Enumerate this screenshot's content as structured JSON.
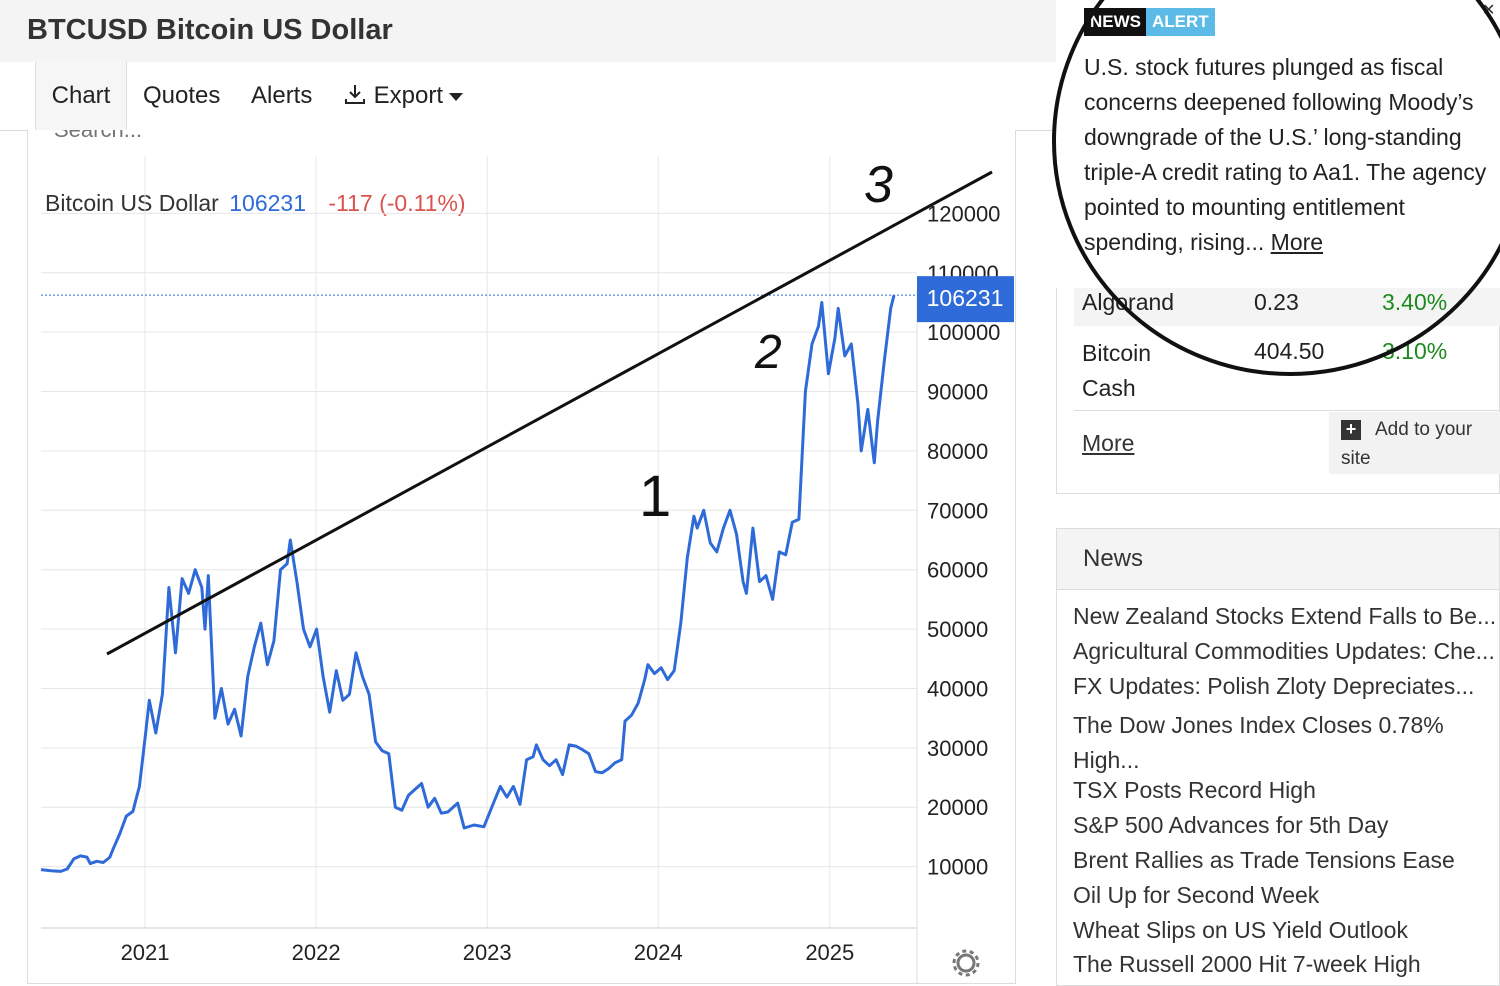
{
  "header": {
    "title": "BTCUSD Bitcoin US Dollar"
  },
  "tabs": [
    {
      "label": "Chart"
    },
    {
      "label": "Quotes"
    },
    {
      "label": "Alerts"
    },
    {
      "label": "Export"
    }
  ],
  "search": {
    "placeholder": "Search..."
  },
  "legend": {
    "name": "Bitcoin US Dollar",
    "price": "106231",
    "change": "-117 (-0.11%)"
  },
  "price_tag": "106231",
  "annotations": {
    "wave1": "1",
    "wave2": "2",
    "wave3": "3"
  },
  "market": {
    "rows": [
      {
        "name": "Algorand",
        "value": "0.23",
        "change": "3.40%"
      },
      {
        "name": "Bitcoin Cash",
        "value": "404.50",
        "change": "3.10%"
      }
    ],
    "more": "More",
    "add_site": "Add to your site"
  },
  "news": {
    "title": "News",
    "items": [
      "New Zealand Stocks Extend Falls to Be...",
      "Agricultural Commodities Updates: Che...",
      "FX Updates: Polish Zloty Depreciates...",
      "The Dow Jones Index Closes 0.78% High...",
      "TSX Posts Record High",
      "S&P 500 Advances for 5th Day",
      "Brent Rallies as Trade Tensions Ease",
      "Oil Up for Second Week",
      "Wheat Slips on US Yield Outlook",
      "The Russell 2000 Hit 7-week High"
    ]
  },
  "alert": {
    "badge_news": "NEWS",
    "badge_alert": "ALERT",
    "text": "U.S. stock futures plunged as fiscal concerns deepened following Moody’s downgrade of the U.S.’ long-standing triple-A credit rating to Aa1. The agency pointed to mounting entitlement spending, rising...",
    "more": "More"
  },
  "colors": {
    "line": "#2f6bd8",
    "tag_bg": "#2f6bd8",
    "negative": "#d9534f",
    "positive": "#1e8a1e"
  },
  "chart_data": {
    "type": "line",
    "title": "",
    "xlabel": "",
    "ylabel": "",
    "x_ticks": [
      "2021",
      "2022",
      "2023",
      "2024",
      "2025"
    ],
    "y_ticks": [
      10000,
      20000,
      30000,
      40000,
      50000,
      60000,
      70000,
      80000,
      90000,
      100000,
      110000,
      120000
    ],
    "xlim": [
      "2020-05-24",
      "2025-05-18"
    ],
    "ylim": [
      0,
      130000
    ],
    "grid": true,
    "last_value": 106231,
    "series": [
      {
        "values": [
          [
            "2020-05-24",
            9500
          ],
          [
            "2020-06-14",
            9300
          ],
          [
            "2020-07-05",
            9200
          ],
          [
            "2020-07-19",
            9600
          ],
          [
            "2020-08-02",
            11300
          ],
          [
            "2020-08-16",
            11800
          ],
          [
            "2020-08-30",
            11600
          ],
          [
            "2020-09-06",
            10500
          ],
          [
            "2020-09-20",
            10900
          ],
          [
            "2020-10-04",
            10700
          ],
          [
            "2020-10-18",
            11600
          ],
          [
            "2020-10-25",
            13000
          ],
          [
            "2020-11-08",
            15500
          ],
          [
            "2020-11-22",
            18500
          ],
          [
            "2020-12-06",
            19300
          ],
          [
            "2020-12-20",
            23500
          ],
          [
            "2021-01-03",
            33000
          ],
          [
            "2021-01-10",
            38000
          ],
          [
            "2021-01-24",
            32500
          ],
          [
            "2021-02-07",
            39000
          ],
          [
            "2021-02-21",
            57000
          ],
          [
            "2021-03-07",
            46000
          ],
          [
            "2021-03-21",
            58500
          ],
          [
            "2021-04-04",
            56000
          ],
          [
            "2021-04-18",
            60000
          ],
          [
            "2021-05-02",
            57000
          ],
          [
            "2021-05-09",
            50000
          ],
          [
            "2021-05-16",
            59000
          ],
          [
            "2021-05-30",
            35000
          ],
          [
            "2021-06-13",
            40000
          ],
          [
            "2021-06-27",
            34000
          ],
          [
            "2021-07-11",
            36500
          ],
          [
            "2021-07-25",
            32000
          ],
          [
            "2021-08-08",
            42000
          ],
          [
            "2021-08-22",
            47000
          ],
          [
            "2021-09-05",
            51000
          ],
          [
            "2021-09-19",
            44000
          ],
          [
            "2021-10-03",
            48000
          ],
          [
            "2021-10-17",
            60000
          ],
          [
            "2021-10-31",
            61000
          ],
          [
            "2021-11-07",
            65000
          ],
          [
            "2021-11-21",
            58000
          ],
          [
            "2021-12-05",
            50000
          ],
          [
            "2021-12-19",
            47000
          ],
          [
            "2022-01-02",
            50000
          ],
          [
            "2022-01-16",
            42000
          ],
          [
            "2022-01-30",
            36000
          ],
          [
            "2022-02-13",
            43000
          ],
          [
            "2022-02-27",
            38000
          ],
          [
            "2022-03-13",
            39000
          ],
          [
            "2022-03-27",
            46000
          ],
          [
            "2022-04-10",
            42000
          ],
          [
            "2022-04-24",
            39000
          ],
          [
            "2022-05-08",
            31000
          ],
          [
            "2022-05-22",
            29500
          ],
          [
            "2022-06-05",
            29000
          ],
          [
            "2022-06-19",
            20000
          ],
          [
            "2022-07-03",
            19500
          ],
          [
            "2022-07-17",
            22000
          ],
          [
            "2022-07-31",
            23000
          ],
          [
            "2022-08-14",
            24000
          ],
          [
            "2022-08-28",
            20000
          ],
          [
            "2022-09-11",
            21500
          ],
          [
            "2022-09-25",
            19000
          ],
          [
            "2022-10-09",
            19200
          ],
          [
            "2022-10-30",
            20700
          ],
          [
            "2022-11-13",
            16500
          ],
          [
            "2022-12-04",
            17000
          ],
          [
            "2022-12-25",
            16700
          ],
          [
            "2023-01-15",
            20800
          ],
          [
            "2023-01-29",
            23500
          ],
          [
            "2023-02-12",
            21700
          ],
          [
            "2023-02-26",
            23500
          ],
          [
            "2023-03-12",
            20500
          ],
          [
            "2023-03-26",
            28000
          ],
          [
            "2023-04-09",
            28500
          ],
          [
            "2023-04-16",
            30500
          ],
          [
            "2023-04-30",
            28000
          ],
          [
            "2023-05-14",
            27000
          ],
          [
            "2023-05-28",
            28000
          ],
          [
            "2023-06-11",
            25500
          ],
          [
            "2023-06-25",
            30500
          ],
          [
            "2023-07-09",
            30300
          ],
          [
            "2023-07-23",
            29700
          ],
          [
            "2023-08-06",
            29000
          ],
          [
            "2023-08-20",
            26000
          ],
          [
            "2023-09-03",
            25800
          ],
          [
            "2023-09-17",
            26500
          ],
          [
            "2023-10-01",
            27500
          ],
          [
            "2023-10-15",
            28000
          ],
          [
            "2023-10-22",
            34500
          ],
          [
            "2023-11-05",
            35500
          ],
          [
            "2023-11-19",
            37500
          ],
          [
            "2023-12-03",
            41500
          ],
          [
            "2023-12-10",
            44000
          ],
          [
            "2023-12-24",
            42500
          ],
          [
            "2024-01-07",
            43500
          ],
          [
            "2024-01-21",
            41500
          ],
          [
            "2024-02-04",
            43000
          ],
          [
            "2024-02-18",
            51000
          ],
          [
            "2024-03-03",
            62000
          ],
          [
            "2024-03-17",
            69000
          ],
          [
            "2024-03-24",
            67000
          ],
          [
            "2024-04-07",
            70000
          ],
          [
            "2024-04-21",
            64500
          ],
          [
            "2024-05-05",
            63000
          ],
          [
            "2024-05-19",
            67000
          ],
          [
            "2024-06-02",
            70000
          ],
          [
            "2024-06-16",
            66000
          ],
          [
            "2024-06-30",
            58000
          ],
          [
            "2024-07-07",
            56000
          ],
          [
            "2024-07-21",
            67000
          ],
          [
            "2024-08-04",
            58000
          ],
          [
            "2024-08-18",
            59000
          ],
          [
            "2024-09-01",
            55000
          ],
          [
            "2024-09-15",
            63000
          ],
          [
            "2024-09-29",
            62500
          ],
          [
            "2024-10-13",
            68000
          ],
          [
            "2024-10-27",
            68500
          ],
          [
            "2024-11-10",
            90000
          ],
          [
            "2024-11-24",
            98000
          ],
          [
            "2024-12-08",
            101000
          ],
          [
            "2024-12-15",
            105000
          ],
          [
            "2024-12-29",
            93000
          ],
          [
            "2025-01-12",
            99000
          ],
          [
            "2025-01-19",
            104000
          ],
          [
            "2025-02-02",
            96000
          ],
          [
            "2025-02-16",
            98000
          ],
          [
            "2025-03-02",
            88000
          ],
          [
            "2025-03-09",
            80000
          ],
          [
            "2025-03-23",
            87000
          ],
          [
            "2025-04-06",
            78000
          ],
          [
            "2025-04-13",
            85000
          ],
          [
            "2025-04-27",
            95000
          ],
          [
            "2025-05-11",
            104000
          ],
          [
            "2025-05-18",
            106231
          ]
        ]
      }
    ]
  }
}
